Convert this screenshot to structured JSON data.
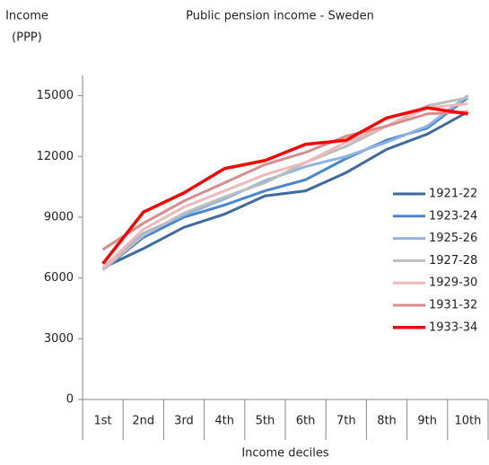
{
  "chart_data": {
    "type": "line",
    "title": "Public pension income - Sweden",
    "ylabel": [
      "Income",
      "(PPP)"
    ],
    "xlabel": "Income deciles",
    "categories": [
      "1st",
      "2nd",
      "3rd",
      "4th",
      "5th",
      "6th",
      "7th",
      "8th",
      "9th",
      "10th"
    ],
    "ylim": [
      0,
      16000
    ],
    "yticks": [
      0,
      3000,
      6000,
      9000,
      12000,
      15000
    ],
    "series": [
      {
        "name": "1921-22",
        "color": "#3f6aa0",
        "values": [
          6500,
          7450,
          8500,
          9150,
          10050,
          10300,
          11200,
          12350,
          13100,
          14200
        ]
      },
      {
        "name": "1923-24",
        "color": "#4a86d0",
        "values": [
          6400,
          8000,
          9000,
          9600,
          10300,
          10850,
          11900,
          12800,
          13400,
          14900
        ]
      },
      {
        "name": "1925-26",
        "color": "#8fb4e3",
        "values": [
          6500,
          8200,
          9100,
          9900,
          10800,
          11500,
          12000,
          12700,
          13500,
          15000
        ]
      },
      {
        "name": "1927-28",
        "color": "#bdbdbd",
        "values": [
          6400,
          8100,
          9200,
          10000,
          10700,
          11700,
          12500,
          13500,
          14500,
          14900
        ]
      },
      {
        "name": "1929-30",
        "color": "#f0b8b8",
        "values": [
          6500,
          8400,
          9500,
          10300,
          11100,
          11700,
          12700,
          13500,
          14400,
          14600
        ]
      },
      {
        "name": "1931-32",
        "color": "#d98c8c",
        "values": [
          7400,
          8700,
          9800,
          10700,
          11600,
          12200,
          13000,
          13500,
          14100,
          14200
        ]
      },
      {
        "name": "1933-34",
        "color": "#ff0000",
        "values": [
          6700,
          9250,
          10200,
          11400,
          11800,
          12600,
          12800,
          13900,
          14400,
          14100
        ]
      }
    ]
  }
}
